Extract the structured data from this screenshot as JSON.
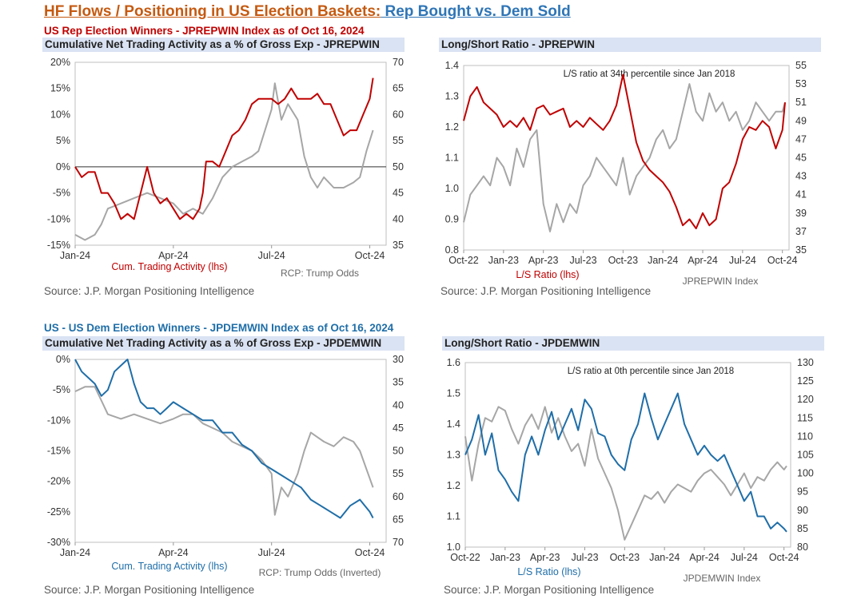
{
  "page": {
    "title_part1": "HF Flows / Positioning in US Election Baskets:",
    "title_part2": " Rep Bought vs. Dem Sold",
    "colors": {
      "red": "#c00000",
      "blue": "#1f6ea8",
      "gray": "#a6a6a6",
      "bar": "#dae3f3",
      "title_orange": "#c55a11",
      "title_blue": "#2e75b6"
    }
  },
  "panels": [
    {
      "heading": "US Rep Election Winners - JPREPWIN Index as of Oct 16, 2024",
      "bar": "Cumulative Net Trading Activity as a % of Gross Exp - JPREPWIN",
      "source": "Source: J.P. Morgan Positioning Intelligence"
    },
    {
      "heading": "",
      "bar": "Long/Short Ratio - JPREPWIN",
      "source": "Source: J.P. Morgan Positioning Intelligence"
    },
    {
      "heading": "US - US Dem Election Winners - JPDEMWIN Index as of Oct 16, 2024",
      "bar": "Cumulative Net Trading Activity as a % of Gross Exp - JPDEMWIN",
      "source": "Source: J.P. Morgan Positioning Intelligence"
    },
    {
      "heading": "",
      "bar": "Long/Short Ratio - JPDEMWIN",
      "source": "Source: J.P. Morgan Positioning Intelligence"
    }
  ],
  "chart_data": [
    {
      "type": "line",
      "x_tick_labels": [
        "Jan-24",
        "Apr-24",
        "Jul-24",
        "Oct-24"
      ],
      "x_tick_positions": [
        0,
        3,
        6,
        9
      ],
      "xlim": [
        0,
        9.5
      ],
      "ylim_left": [
        -15,
        20
      ],
      "yticks_left": [
        "-15%",
        "-10%",
        "-5%",
        "0%",
        "5%",
        "10%",
        "15%",
        "20%"
      ],
      "ylim_right": [
        35,
        70
      ],
      "yticks_right": [
        "35",
        "40",
        "45",
        "50",
        "55",
        "60",
        "65",
        "70"
      ],
      "zero_line": true,
      "series": [
        {
          "name": "Cum. Trading Activity (lhs)",
          "axis": "left",
          "color": "#c00000",
          "x": [
            0,
            0.2,
            0.4,
            0.6,
            0.8,
            1.0,
            1.2,
            1.4,
            1.6,
            1.8,
            2.0,
            2.2,
            2.4,
            2.6,
            2.8,
            3.0,
            3.2,
            3.4,
            3.6,
            3.8,
            3.9,
            4.0,
            4.2,
            4.4,
            4.6,
            4.8,
            5.0,
            5.2,
            5.4,
            5.6,
            5.8,
            6.0,
            6.2,
            6.4,
            6.6,
            6.8,
            7.0,
            7.2,
            7.4,
            7.6,
            7.8,
            8.0,
            8.2,
            8.4,
            8.6,
            8.8,
            9.0,
            9.1
          ],
          "values": [
            0,
            -2,
            -1,
            -1,
            -5,
            -5,
            -7,
            -10,
            -9,
            -10,
            -5,
            0,
            -5,
            -7,
            -6,
            -8,
            -10,
            -9,
            -10,
            -8,
            -5,
            1,
            1,
            0,
            3,
            6,
            7,
            9,
            12,
            13,
            13,
            13,
            12,
            13,
            15,
            13,
            13,
            13,
            14,
            12,
            12,
            9,
            6,
            7,
            7,
            10,
            13,
            17
          ]
        },
        {
          "name": "RCP: Trump Odds",
          "axis": "right",
          "color": "#a6a6a6",
          "x": [
            0,
            0.3,
            0.6,
            0.8,
            1.0,
            1.4,
            1.8,
            2.2,
            2.6,
            3.0,
            3.3,
            3.6,
            3.9,
            4.2,
            4.5,
            4.8,
            5.1,
            5.4,
            5.6,
            5.8,
            6.0,
            6.1,
            6.3,
            6.5,
            6.8,
            7.0,
            7.2,
            7.4,
            7.6,
            7.9,
            8.2,
            8.5,
            8.7,
            8.9,
            9.1
          ],
          "values": [
            37,
            36,
            37,
            39,
            42,
            43,
            44,
            45,
            44,
            43,
            41,
            42,
            41,
            44,
            48,
            50,
            51,
            52,
            53,
            57,
            61,
            66,
            59,
            62,
            59,
            52,
            48,
            46,
            48,
            46,
            46,
            47,
            48,
            53,
            57
          ]
        }
      ],
      "xlabel_left": "Cum. Trading Activity (lhs)",
      "xlabel_right": "RCP: Trump Odds",
      "annotation": ""
    },
    {
      "type": "line",
      "x_tick_labels": [
        "Oct-22",
        "Jan-23",
        "Apr-23",
        "Jul-23",
        "Oct-23",
        "Jan-24",
        "Apr-24",
        "Jul-24",
        "Oct-24"
      ],
      "x_tick_positions": [
        0,
        3,
        6,
        9,
        12,
        15,
        18,
        21,
        24
      ],
      "xlim": [
        0,
        24.5
      ],
      "ylim_left": [
        0.8,
        1.4
      ],
      "yticks_left": [
        "0.8",
        "0.9",
        "1.0",
        "1.1",
        "1.2",
        "1.3",
        "1.4"
      ],
      "ylim_right": [
        35,
        55
      ],
      "yticks_right": [
        "35",
        "37",
        "39",
        "41",
        "43",
        "45",
        "47",
        "49",
        "51",
        "53",
        "55"
      ],
      "zero_line": false,
      "series": [
        {
          "name": "L/S Ratio (lhs)",
          "axis": "left",
          "color": "#c00000",
          "x": [
            0,
            0.5,
            1.0,
            1.5,
            2.0,
            2.5,
            3.0,
            3.5,
            4.0,
            4.5,
            5.0,
            5.5,
            6.0,
            6.5,
            7.0,
            7.5,
            8.0,
            8.5,
            9.0,
            9.5,
            10.0,
            10.5,
            11.0,
            11.5,
            12.0,
            12.5,
            13.0,
            13.5,
            14.0,
            14.5,
            15.0,
            15.5,
            16.0,
            16.5,
            17.0,
            17.5,
            18.0,
            18.5,
            19.0,
            19.5,
            20.0,
            20.5,
            21.0,
            21.5,
            22.0,
            22.5,
            23.0,
            23.5,
            24.0,
            24.2
          ],
          "values": [
            1.22,
            1.3,
            1.33,
            1.28,
            1.26,
            1.24,
            1.2,
            1.22,
            1.2,
            1.23,
            1.19,
            1.26,
            1.27,
            1.24,
            1.25,
            1.26,
            1.2,
            1.22,
            1.2,
            1.23,
            1.21,
            1.19,
            1.22,
            1.27,
            1.37,
            1.26,
            1.15,
            1.09,
            1.06,
            1.04,
            1.02,
            0.99,
            0.94,
            0.88,
            0.9,
            0.87,
            0.92,
            0.88,
            0.9,
            1.0,
            1.02,
            1.08,
            1.16,
            1.2,
            1.19,
            1.22,
            1.2,
            1.13,
            1.19,
            1.28
          ]
        },
        {
          "name": "JPREPWIN Index",
          "axis": "right",
          "color": "#a6a6a6",
          "x": [
            0,
            0.5,
            1.0,
            1.5,
            2.0,
            2.5,
            3.0,
            3.5,
            4.0,
            4.5,
            5.0,
            5.5,
            6.0,
            6.5,
            7.0,
            7.5,
            8.0,
            8.5,
            9.0,
            9.5,
            10.0,
            10.5,
            11.0,
            11.5,
            12.0,
            12.5,
            13.0,
            13.5,
            14.0,
            14.5,
            15.0,
            15.5,
            16.0,
            16.5,
            17.0,
            17.5,
            18.0,
            18.5,
            19.0,
            19.5,
            20.0,
            20.5,
            21.0,
            21.5,
            22.0,
            22.5,
            23.0,
            23.5,
            24.0,
            24.2
          ],
          "values": [
            38,
            41,
            42,
            43,
            42,
            45,
            44,
            42,
            46,
            44,
            47,
            48,
            40,
            37,
            40,
            38,
            40,
            39,
            42,
            43,
            45,
            44,
            43,
            42,
            45,
            41,
            43,
            44,
            45,
            47,
            48,
            46,
            47,
            50,
            53,
            50,
            49,
            52,
            50,
            51,
            49,
            50,
            48,
            49,
            51,
            50,
            49,
            50,
            50,
            51
          ]
        }
      ],
      "xlabel_left": "L/S Ratio (lhs)",
      "xlabel_right": "JPREPWIN Index",
      "annotation": "L/S ratio at 34th percentile since Jan 2018"
    },
    {
      "type": "line",
      "x_tick_labels": [
        "Jan-24",
        "Apr-24",
        "Jul-24",
        "Oct-24"
      ],
      "x_tick_positions": [
        0,
        3,
        6,
        9
      ],
      "xlim": [
        0,
        9.5
      ],
      "ylim_left": [
        -30,
        0
      ],
      "yticks_left": [
        "-30%",
        "-25%",
        "-20%",
        "-15%",
        "-10%",
        "-5%",
        "0%"
      ],
      "ylim_right": [
        70,
        30
      ],
      "yticks_right": [
        "70",
        "65",
        "60",
        "55",
        "50",
        "45",
        "40",
        "35",
        "30"
      ],
      "zero_line": false,
      "series": [
        {
          "name": "Cum. Trading Activity (lhs)",
          "axis": "left",
          "color": "#1f6ea8",
          "x": [
            0,
            0.2,
            0.4,
            0.6,
            0.8,
            1.0,
            1.2,
            1.4,
            1.6,
            1.8,
            2.0,
            2.2,
            2.4,
            2.6,
            2.8,
            3.0,
            3.3,
            3.6,
            3.9,
            4.2,
            4.5,
            4.8,
            5.1,
            5.4,
            5.7,
            6.0,
            6.3,
            6.6,
            6.9,
            7.2,
            7.5,
            7.8,
            8.1,
            8.4,
            8.7,
            9.0,
            9.1
          ],
          "values": [
            0,
            -2,
            -3,
            -4,
            -6,
            -5,
            -2,
            -1,
            0,
            -4,
            -7,
            -8,
            -8,
            -9,
            -8,
            -7,
            -8,
            -9,
            -10,
            -10,
            -12,
            -12,
            -14,
            -15,
            -17,
            -18,
            -19,
            -20,
            -21,
            -23,
            -24,
            -25,
            -26,
            -24,
            -23,
            -25,
            -26
          ]
        },
        {
          "name": "RCP: Trump Odds (Inverted)",
          "axis": "right",
          "color": "#a6a6a6",
          "x": [
            0,
            0.3,
            0.6,
            0.8,
            1.0,
            1.4,
            1.8,
            2.2,
            2.6,
            3.0,
            3.3,
            3.6,
            3.9,
            4.2,
            4.5,
            4.8,
            5.1,
            5.4,
            5.7,
            6.0,
            6.1,
            6.3,
            6.5,
            6.8,
            7.0,
            7.2,
            7.4,
            7.6,
            7.9,
            8.2,
            8.5,
            8.7,
            8.9,
            9.1
          ],
          "values": [
            37,
            36,
            36,
            39,
            42,
            43,
            42,
            43,
            44,
            43,
            42,
            42,
            44,
            45,
            46,
            48,
            49,
            50,
            52,
            55,
            64,
            58,
            60,
            55,
            50,
            46,
            47,
            48,
            49,
            47,
            48,
            50,
            54,
            58
          ]
        }
      ],
      "xlabel_left": "Cum. Trading Activity (lhs)",
      "xlabel_right": "RCP: Trump Odds (Inverted)",
      "annotation": ""
    },
    {
      "type": "line",
      "x_tick_labels": [
        "Oct-22",
        "Jan-23",
        "Apr-23",
        "Jul-23",
        "Oct-23",
        "Jan-24",
        "Apr-24",
        "Jul-24",
        "Oct-24"
      ],
      "x_tick_positions": [
        0,
        3,
        6,
        9,
        12,
        15,
        18,
        21,
        24
      ],
      "xlim": [
        0,
        24.5
      ],
      "ylim_left": [
        1.0,
        1.6
      ],
      "yticks_left": [
        "1.0",
        "1.1",
        "1.2",
        "1.3",
        "1.4",
        "1.5",
        "1.6"
      ],
      "ylim_right": [
        80,
        130
      ],
      "yticks_right": [
        "80",
        "85",
        "90",
        "95",
        "100",
        "105",
        "110",
        "115",
        "120",
        "125",
        "130"
      ],
      "zero_line": false,
      "series": [
        {
          "name": "L/S Ratio (lhs)",
          "axis": "left",
          "color": "#1f6ea8",
          "x": [
            0,
            0.5,
            1.0,
            1.5,
            2.0,
            2.5,
            3.0,
            3.5,
            4.0,
            4.5,
            5.0,
            5.5,
            6.0,
            6.5,
            7.0,
            7.5,
            8.0,
            8.5,
            9.0,
            9.5,
            10.0,
            10.5,
            11.0,
            11.5,
            12.0,
            12.5,
            13.0,
            13.5,
            14.0,
            14.5,
            15.0,
            15.5,
            16.0,
            16.5,
            17.0,
            17.5,
            18.0,
            18.5,
            19.0,
            19.5,
            20.0,
            20.5,
            21.0,
            21.5,
            22.0,
            22.5,
            23.0,
            23.5,
            24.0,
            24.2
          ],
          "values": [
            1.3,
            1.35,
            1.43,
            1.3,
            1.37,
            1.25,
            1.22,
            1.18,
            1.15,
            1.3,
            1.36,
            1.3,
            1.38,
            1.44,
            1.35,
            1.4,
            1.45,
            1.38,
            1.48,
            1.45,
            1.37,
            1.36,
            1.3,
            1.27,
            1.25,
            1.35,
            1.4,
            1.5,
            1.42,
            1.35,
            1.4,
            1.45,
            1.5,
            1.4,
            1.35,
            1.3,
            1.33,
            1.3,
            1.28,
            1.3,
            1.25,
            1.2,
            1.15,
            1.18,
            1.1,
            1.1,
            1.06,
            1.08,
            1.06,
            1.05
          ]
        },
        {
          "name": "JPDEMWIN Index",
          "axis": "right",
          "color": "#a6a6a6",
          "x": [
            0,
            0.5,
            1.0,
            1.5,
            2.0,
            2.5,
            3.0,
            3.5,
            4.0,
            4.5,
            5.0,
            5.5,
            6.0,
            6.5,
            7.0,
            7.5,
            8.0,
            8.5,
            9.0,
            9.5,
            10.0,
            10.5,
            11.0,
            11.5,
            12.0,
            12.5,
            13.0,
            13.5,
            14.0,
            14.5,
            15.0,
            15.5,
            16.0,
            16.5,
            17.0,
            17.5,
            18.0,
            18.5,
            19.0,
            19.5,
            20.0,
            20.5,
            21.0,
            21.5,
            22.0,
            22.5,
            23.0,
            23.5,
            24.0,
            24.2
          ],
          "values": [
            110,
            98,
            108,
            115,
            114,
            118,
            117,
            112,
            108,
            113,
            116,
            112,
            118,
            111,
            115,
            110,
            106,
            108,
            102,
            112,
            104,
            100,
            96,
            90,
            82,
            86,
            90,
            94,
            93,
            95,
            92,
            95,
            97,
            96,
            95,
            98,
            100,
            101,
            99,
            97,
            94,
            97,
            100,
            96,
            99,
            98,
            101,
            103,
            101,
            102
          ]
        }
      ],
      "xlabel_left": "L/S Ratio (lhs)",
      "xlabel_right": "JPDEMWIN Index",
      "annotation": "L/S ratio at 0th percentile since Jan 2018"
    }
  ]
}
